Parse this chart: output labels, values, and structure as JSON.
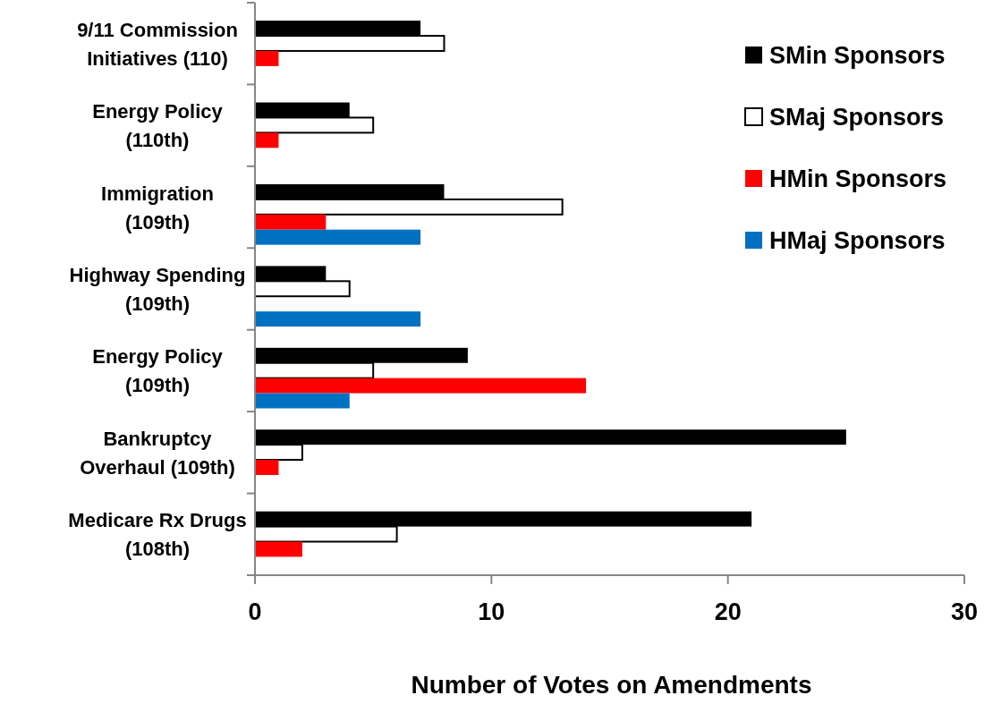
{
  "chart_data": {
    "type": "bar",
    "orientation": "horizontal",
    "xlabel": "Number of Votes on Amendments",
    "categories": [
      "9/11 Commission\nInitiatives (110)",
      "Energy Policy\n(110th)",
      "Immigration\n(109th)",
      "Highway Spending\n(109th)",
      "Energy Policy\n(109th)",
      "Bankruptcy\nOverhaul (109th)",
      "Medicare Rx Drugs\n(108th)"
    ],
    "series": [
      {
        "name": "SMin Sponsors",
        "color": "#000000",
        "values": [
          7,
          4,
          8,
          3,
          9,
          25,
          21
        ]
      },
      {
        "name": "SMaj Sponsors",
        "color": "#ffffff",
        "values": [
          8,
          5,
          13,
          4,
          5,
          2,
          6
        ]
      },
      {
        "name": "HMin Sponsors",
        "color": "#ff0000",
        "values": [
          1,
          1,
          3,
          null,
          14,
          1,
          2
        ]
      },
      {
        "name": "HMaj Sponsors",
        "color": "#0070c0",
        "values": [
          null,
          null,
          7,
          7,
          4,
          null,
          null
        ]
      }
    ],
    "xlim": [
      0,
      30
    ],
    "xticks": [
      0,
      10,
      20,
      30
    ],
    "grid": false,
    "legend": "top right"
  }
}
